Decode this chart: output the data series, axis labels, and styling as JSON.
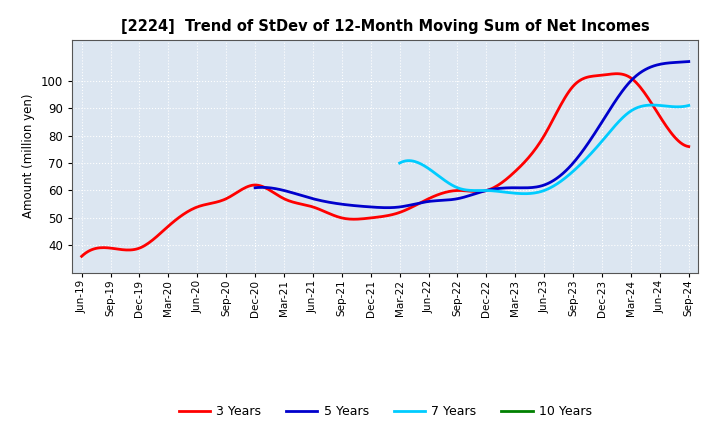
{
  "title": "[2224]  Trend of StDev of 12-Month Moving Sum of Net Incomes",
  "ylabel": "Amount (million yen)",
  "background_color": "#ffffff",
  "plot_bg_color": "#dce6f1",
  "grid_color": "#ffffff",
  "ylim": [
    30,
    115
  ],
  "yticks": [
    40,
    50,
    60,
    70,
    80,
    90,
    100
  ],
  "x_labels": [
    "Jun-19",
    "Sep-19",
    "Dec-19",
    "Mar-20",
    "Jun-20",
    "Sep-20",
    "Dec-20",
    "Mar-21",
    "Jun-21",
    "Sep-21",
    "Dec-21",
    "Mar-22",
    "Jun-22",
    "Sep-22",
    "Dec-22",
    "Mar-23",
    "Jun-23",
    "Sep-23",
    "Dec-23",
    "Mar-24",
    "Jun-24",
    "Sep-24"
  ],
  "series_3yr": {
    "color": "#ff0000",
    "label": "3 Years",
    "x": [
      0,
      3,
      6,
      9,
      12,
      15,
      18,
      21,
      24,
      27,
      30,
      33,
      36,
      39,
      42,
      45,
      48,
      51,
      54,
      57,
      60,
      63
    ],
    "y": [
      36,
      39,
      39,
      47,
      54,
      57,
      62,
      57,
      54,
      50,
      50,
      52,
      57,
      60,
      60,
      67,
      80,
      98,
      102,
      101,
      87,
      76
    ]
  },
  "series_5yr": {
    "color": "#0000cc",
    "label": "5 Years",
    "x": [
      18,
      21,
      24,
      27,
      30,
      33,
      36,
      39,
      42,
      45,
      48,
      51,
      54,
      57,
      60,
      63
    ],
    "y": [
      61,
      60,
      57,
      55,
      54,
      54,
      56,
      57,
      60,
      61,
      62,
      70,
      85,
      100,
      106,
      107
    ]
  },
  "series_7yr": {
    "color": "#00ccff",
    "label": "7 Years",
    "x": [
      33,
      36,
      39,
      42,
      45,
      48,
      51,
      54,
      57,
      60,
      63
    ],
    "y": [
      70,
      68,
      61,
      60,
      59,
      60,
      67,
      78,
      89,
      91,
      91
    ]
  },
  "series_10yr": {
    "color": "#008000",
    "label": "10 Years",
    "x": [],
    "y": []
  },
  "legend_labels": [
    "3 Years",
    "5 Years",
    "7 Years",
    "10 Years"
  ],
  "legend_colors": [
    "#ff0000",
    "#0000cc",
    "#00ccff",
    "#008000"
  ]
}
